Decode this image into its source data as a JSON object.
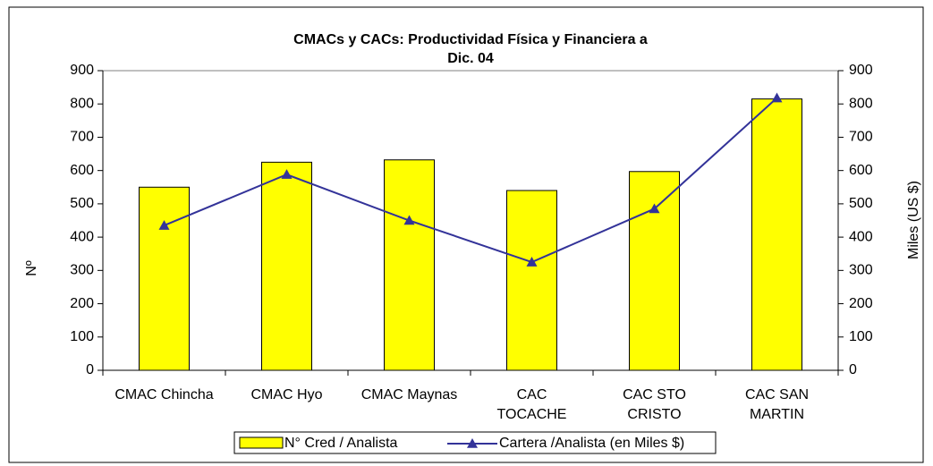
{
  "chart_data": {
    "type": "bar-line",
    "title": [
      "CMACs y CACs: Productividad Física y Financiera a",
      "Dic. 04"
    ],
    "ylabel": "Nº",
    "y2label": "Miles (US $)",
    "categories": [
      [
        "CMAC Chincha"
      ],
      [
        "CMAC Hyo"
      ],
      [
        "CMAC Maynas"
      ],
      [
        "CAC",
        "TOCACHE"
      ],
      [
        "CAC STO",
        "CRISTO"
      ],
      [
        "CAC SAN",
        "MARTIN"
      ]
    ],
    "series": [
      {
        "name": "N° Cred / Analista",
        "type": "bar",
        "color": "#ffff00",
        "values": [
          550,
          625,
          632,
          540,
          597,
          815
        ]
      },
      {
        "name": "Cartera /Analista (en Miles $)",
        "type": "line",
        "axis": "y2",
        "color": "#333399",
        "values": [
          435,
          588,
          450,
          325,
          485,
          818
        ]
      }
    ],
    "ylim": [
      0,
      900
    ],
    "yticks": [
      0,
      100,
      200,
      300,
      400,
      500,
      600,
      700,
      800,
      900
    ],
    "y2lim": [
      0,
      900
    ],
    "y2ticks": [
      0,
      100,
      200,
      300,
      400,
      500,
      600,
      700,
      800,
      900
    ],
    "legend": "bottom"
  }
}
